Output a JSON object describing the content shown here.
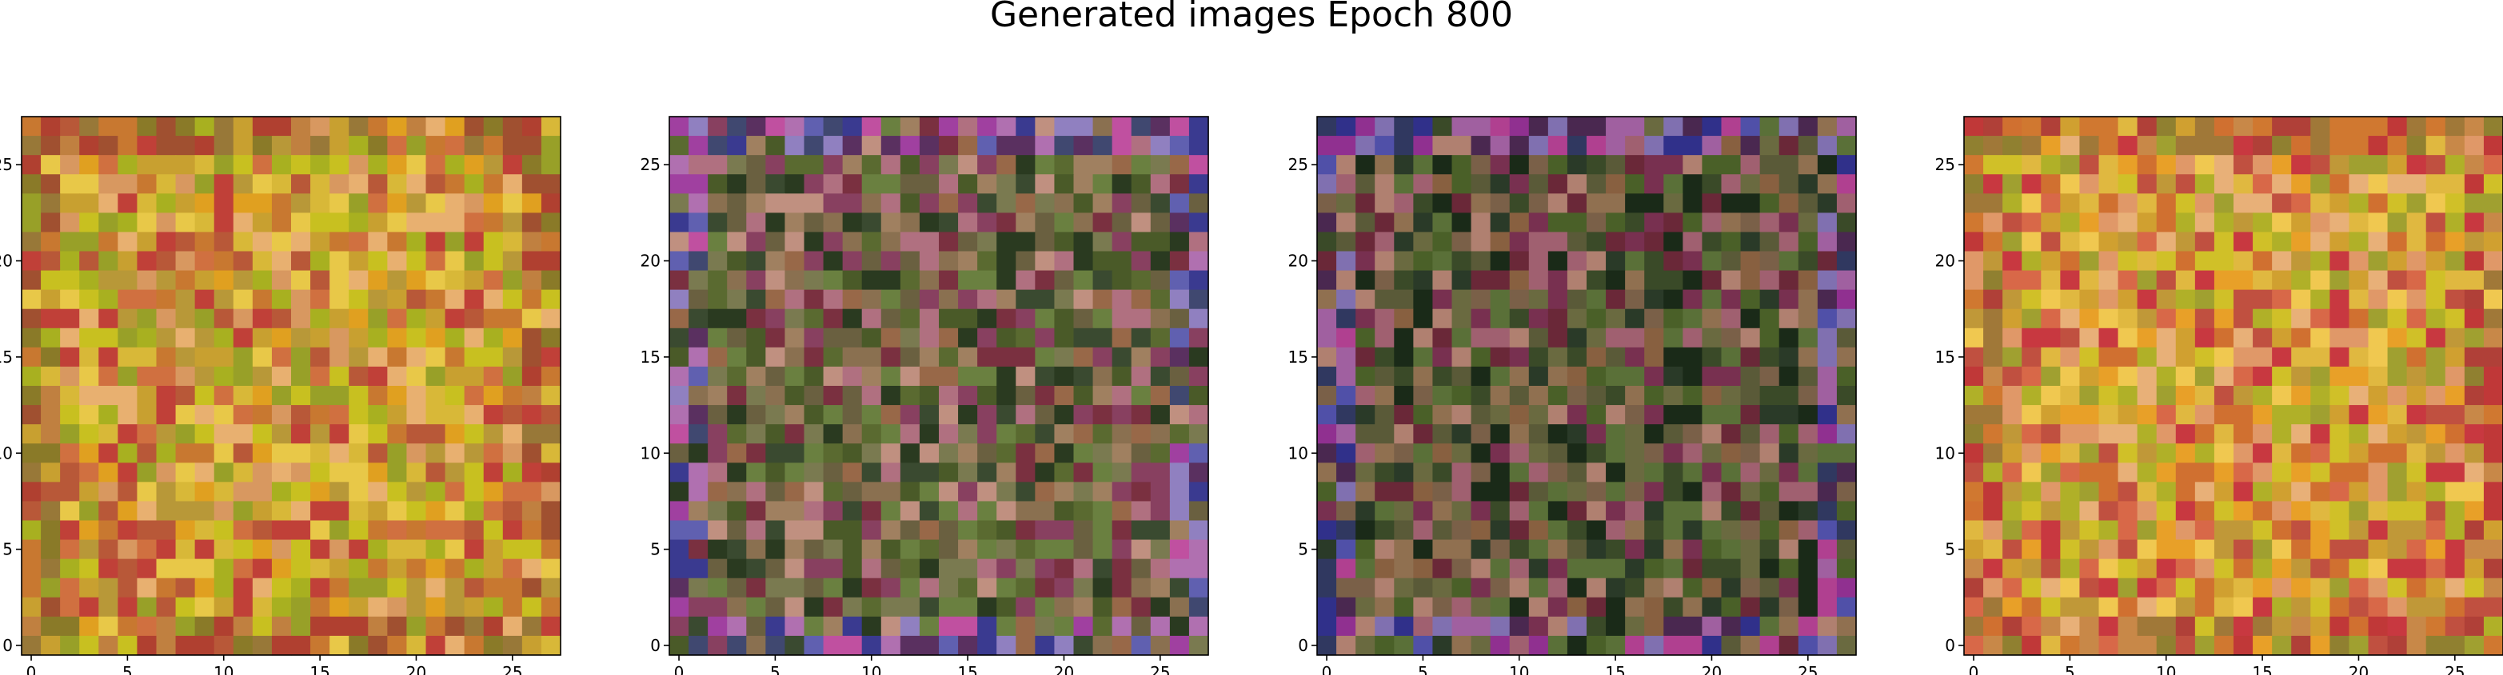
{
  "figure": {
    "suptitle": "Generated images Epoch 800"
  },
  "chart_data": [
    {
      "type": "heatmap",
      "rows": 28,
      "cols": 28,
      "xlim": [
        -0.5,
        27.5
      ],
      "ylim": [
        27.5,
        -0.5
      ],
      "xticks": [
        0,
        5,
        10,
        15,
        20,
        25
      ],
      "yticks": [
        0,
        5,
        10,
        15,
        20,
        25
      ],
      "xtick_labels": [
        "0",
        "5",
        "10",
        "15",
        "20",
        "25"
      ],
      "ytick_labels": [
        "0",
        "5",
        "10",
        "15",
        "20",
        "25"
      ],
      "palette": [
        "#c8a030",
        "#d8b838",
        "#e0a020",
        "#c87830",
        "#b89838",
        "#a8b020",
        "#d07040",
        "#c04038",
        "#98a028",
        "#e8c848",
        "#d89860",
        "#b85838",
        "#c8c020",
        "#e8b070"
      ],
      "border_palette": [
        "#b04030",
        "#c87830",
        "#8a7a28",
        "#a05030",
        "#987838",
        "#c08040"
      ],
      "seed": 11
    },
    {
      "type": "heatmap",
      "rows": 28,
      "cols": 28,
      "xlim": [
        -0.5,
        27.5
      ],
      "ylim": [
        27.5,
        -0.5
      ],
      "xticks": [
        0,
        5,
        10,
        15,
        20,
        25
      ],
      "yticks": [
        0,
        5,
        10,
        15,
        20,
        25
      ],
      "xtick_labels": [
        "0",
        "5",
        "10",
        "15",
        "20",
        "25"
      ],
      "ytick_labels": [
        "0",
        "5",
        "10",
        "15",
        "20",
        "25"
      ],
      "palette": [
        "#6a6040",
        "#4a5a28",
        "#8a7050",
        "#7a3040",
        "#3a4a30",
        "#a08060",
        "#5a6a30",
        "#986848",
        "#b07080",
        "#2a3a20",
        "#7a7a50",
        "#884060",
        "#6a8040",
        "#c09080"
      ],
      "border_palette": [
        "#3a3a90",
        "#6060b0",
        "#a040a0",
        "#c050a0",
        "#9080c0",
        "#404870",
        "#b070b0",
        "#5a3060"
      ],
      "seed": 23
    },
    {
      "type": "heatmap",
      "rows": 28,
      "cols": 28,
      "xlim": [
        -0.5,
        27.5
      ],
      "ylim": [
        27.5,
        -0.5
      ],
      "xticks": [
        0,
        5,
        10,
        15,
        20,
        25
      ],
      "yticks": [
        0,
        5,
        10,
        15,
        20,
        25
      ],
      "xtick_labels": [
        "0",
        "5",
        "10",
        "15",
        "20",
        "25"
      ],
      "ytick_labels": [
        "0",
        "5",
        "10",
        "15",
        "20",
        "25"
      ],
      "palette": [
        "#5a5a38",
        "#3a4a28",
        "#7a6048",
        "#6a2838",
        "#2a3a28",
        "#907050",
        "#4a6028",
        "#886040",
        "#a06070",
        "#1a2a18",
        "#6a6a40",
        "#783050",
        "#5a7038",
        "#b08070"
      ],
      "border_palette": [
        "#30308a",
        "#5050a8",
        "#903090",
        "#b04090",
        "#8070b0",
        "#303860",
        "#a060a0",
        "#4a2850"
      ],
      "seed": 37
    },
    {
      "type": "heatmap",
      "rows": 28,
      "cols": 28,
      "xlim": [
        -0.5,
        27.5
      ],
      "ylim": [
        27.5,
        -0.5
      ],
      "xticks": [
        0,
        5,
        10,
        15,
        20,
        25
      ],
      "yticks": [
        0,
        5,
        10,
        15,
        20,
        25
      ],
      "xtick_labels": [
        "0",
        "5",
        "10",
        "15",
        "20",
        "25"
      ],
      "ytick_labels": [
        "0",
        "5",
        "10",
        "15",
        "20",
        "25"
      ],
      "palette": [
        "#d0a030",
        "#e0b840",
        "#e8a028",
        "#d07030",
        "#c09838",
        "#b0b028",
        "#d86848",
        "#c83840",
        "#a0a030",
        "#f0c850",
        "#e09868",
        "#c05040",
        "#d0c028",
        "#e8b078"
      ],
      "border_palette": [
        "#c03838",
        "#d07830",
        "#908030",
        "#b04038",
        "#a07838",
        "#c88848"
      ],
      "seed": 53
    }
  ]
}
